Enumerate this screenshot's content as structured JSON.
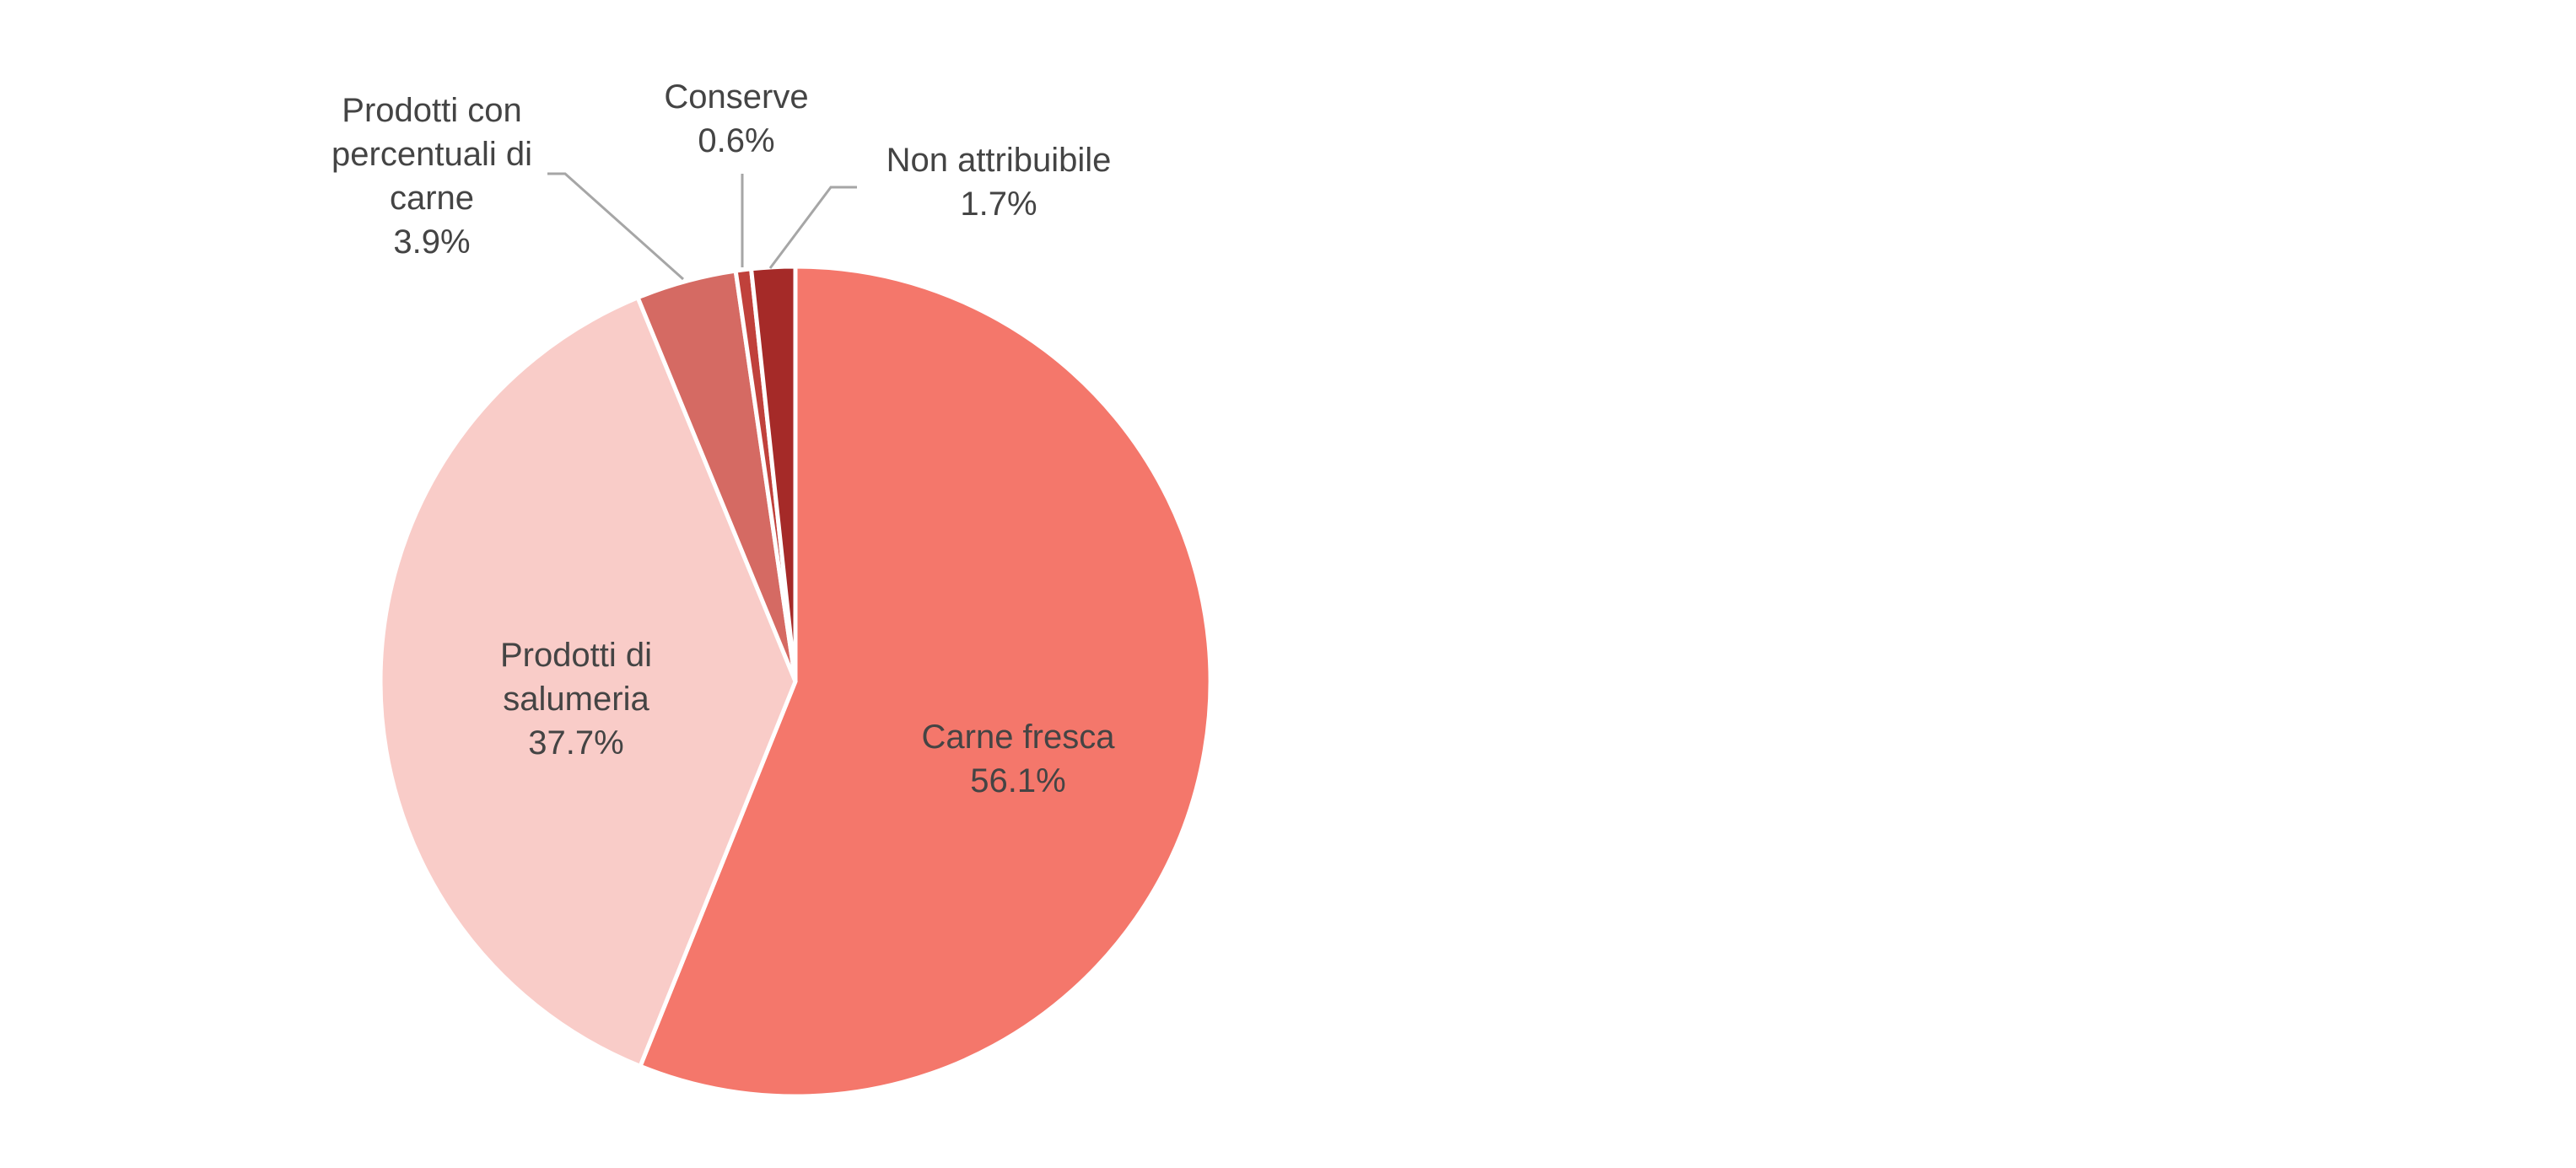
{
  "chart_data": {
    "type": "pie",
    "title": "",
    "start_angle_deg": 0,
    "direction": "clockwise",
    "slices": [
      {
        "label": "Carne fresca",
        "value": 56.1,
        "display": "56.1%",
        "color": "#f4776b",
        "label_position": "inside"
      },
      {
        "label": "Prodotti di salumeria",
        "value": 37.7,
        "display": "37.7%",
        "color": "#f9ccc8",
        "label_position": "inside"
      },
      {
        "label": "Prodotti con percentuali di carne",
        "value": 3.9,
        "display": "3.9%",
        "color": "#d56a63",
        "label_position": "outside"
      },
      {
        "label": "Conserve",
        "value": 0.6,
        "display": "0.6%",
        "color": "#c0413b",
        "label_position": "outside"
      },
      {
        "label": "Non attribuibile",
        "value": 1.7,
        "display": "1.7%",
        "color": "#a52a28",
        "label_position": "outside"
      }
    ],
    "legend": "none"
  }
}
